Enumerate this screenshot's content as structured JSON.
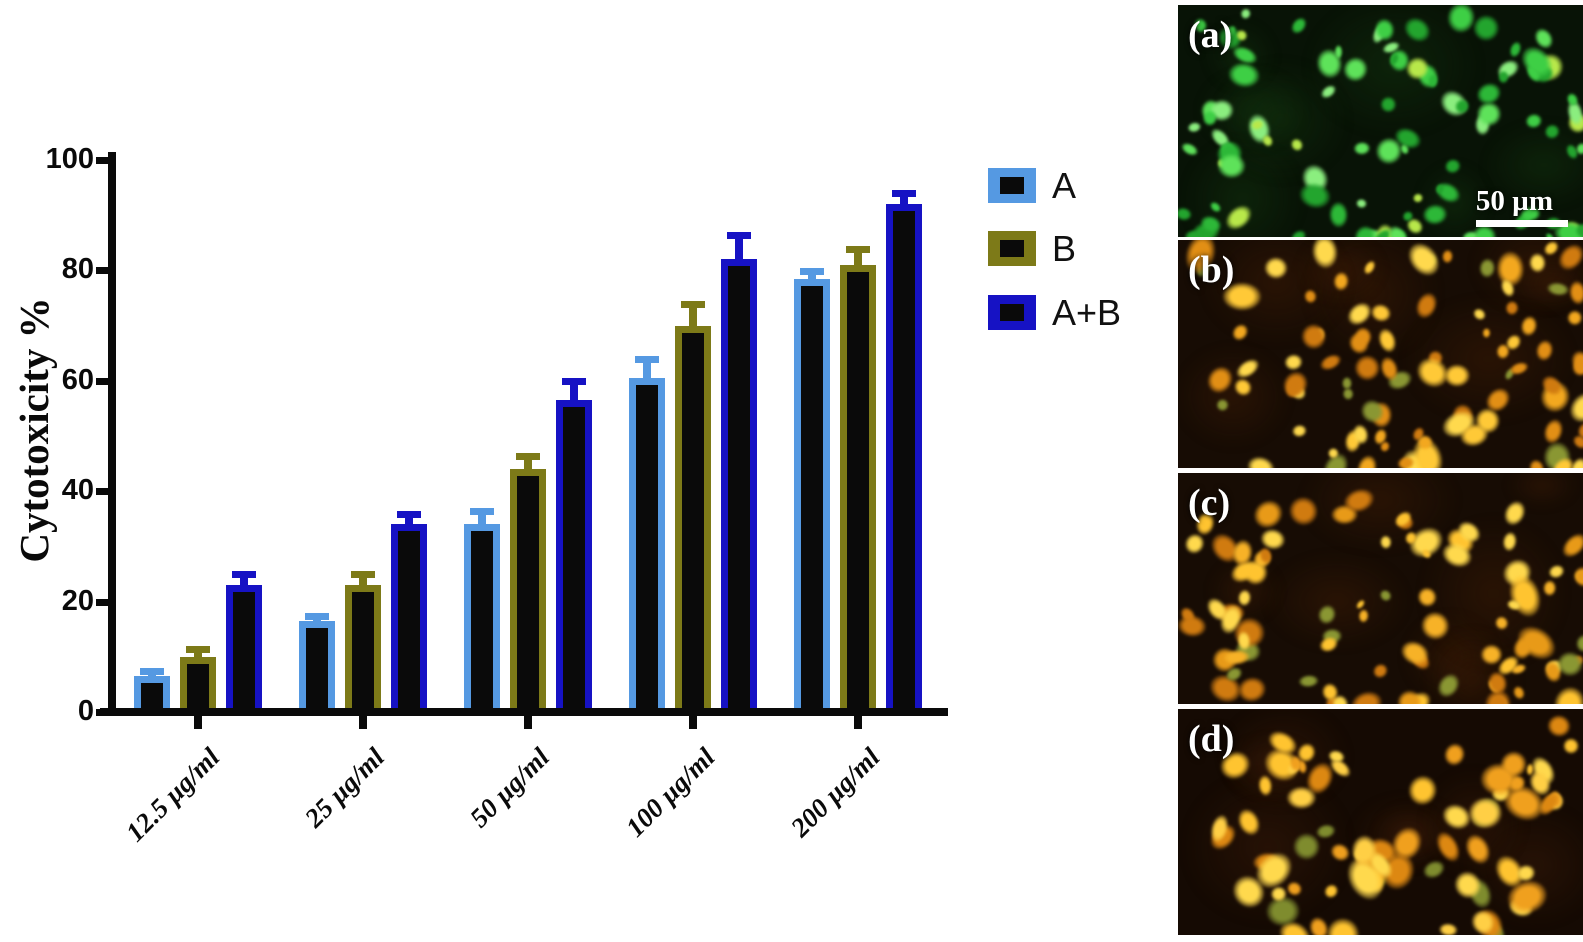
{
  "figure": {
    "background": "#ffffff"
  },
  "chart_data": {
    "type": "bar",
    "title": "",
    "xlabel": "",
    "ylabel": "Cytotoxicity %",
    "ylim": [
      0,
      100
    ],
    "yticks": [
      0,
      20,
      40,
      60,
      80,
      100
    ],
    "grid": false,
    "legend_position": "right-top",
    "bar_fill": "#0a0a0a",
    "axis_color": "#0a0a0a",
    "categories": [
      "12.5 µg/ml",
      "25 µg/ml",
      "50 µg/ml",
      "100 µg/ml",
      "200 µg/ml"
    ],
    "series": [
      {
        "name": "A",
        "color": "#5599e2",
        "values": [
          6.5,
          16.5,
          34,
          60.5,
          78.5
        ],
        "errors": [
          1.5,
          1.5,
          3,
          4,
          2
        ]
      },
      {
        "name": "B",
        "color": "#7d7a18",
        "values": [
          10,
          23,
          44,
          70,
          81
        ],
        "errors": [
          2,
          2.5,
          3,
          4.5,
          3.5
        ]
      },
      {
        "name": "A+B",
        "color": "#1612c4",
        "values": [
          23,
          34,
          56.5,
          82,
          92
        ],
        "errors": [
          2.5,
          2.5,
          4,
          5,
          2.5
        ]
      }
    ]
  },
  "micrographs": {
    "panels": [
      {
        "label": "(a)",
        "background": "#081306",
        "haze": "#164212",
        "cell_colors": [
          "#3ecf45",
          "#2db838",
          "#5ee25a",
          "#23a52e",
          "#8bee7f"
        ],
        "accent_color": "#b8e84a",
        "cell_count": 95,
        "scale_bar": {
          "text": "50 µm"
        }
      },
      {
        "label": "(b)",
        "background": "#170c04",
        "haze": "#4d2206",
        "cell_colors": [
          "#f3a81f",
          "#e28f15",
          "#ffc937",
          "#d07b10",
          "#ffd94d"
        ],
        "accent_color": "#8a9733",
        "cell_count": 88
      },
      {
        "label": "(c)",
        "background": "#170c04",
        "haze": "#4d2206",
        "cell_colors": [
          "#ffc430",
          "#e89a18",
          "#ffd94d",
          "#d07b10",
          "#f7b227"
        ],
        "accent_color": "#8a9733",
        "cell_count": 82
      },
      {
        "label": "(d)",
        "background": "#150a03",
        "haze": "#48210a",
        "cell_colors": [
          "#ffc430",
          "#f0a01e",
          "#ffd94d",
          "#dd8812",
          "#ffcf45"
        ],
        "accent_color": "#7f8c2e",
        "cell_count": 72
      }
    ]
  }
}
